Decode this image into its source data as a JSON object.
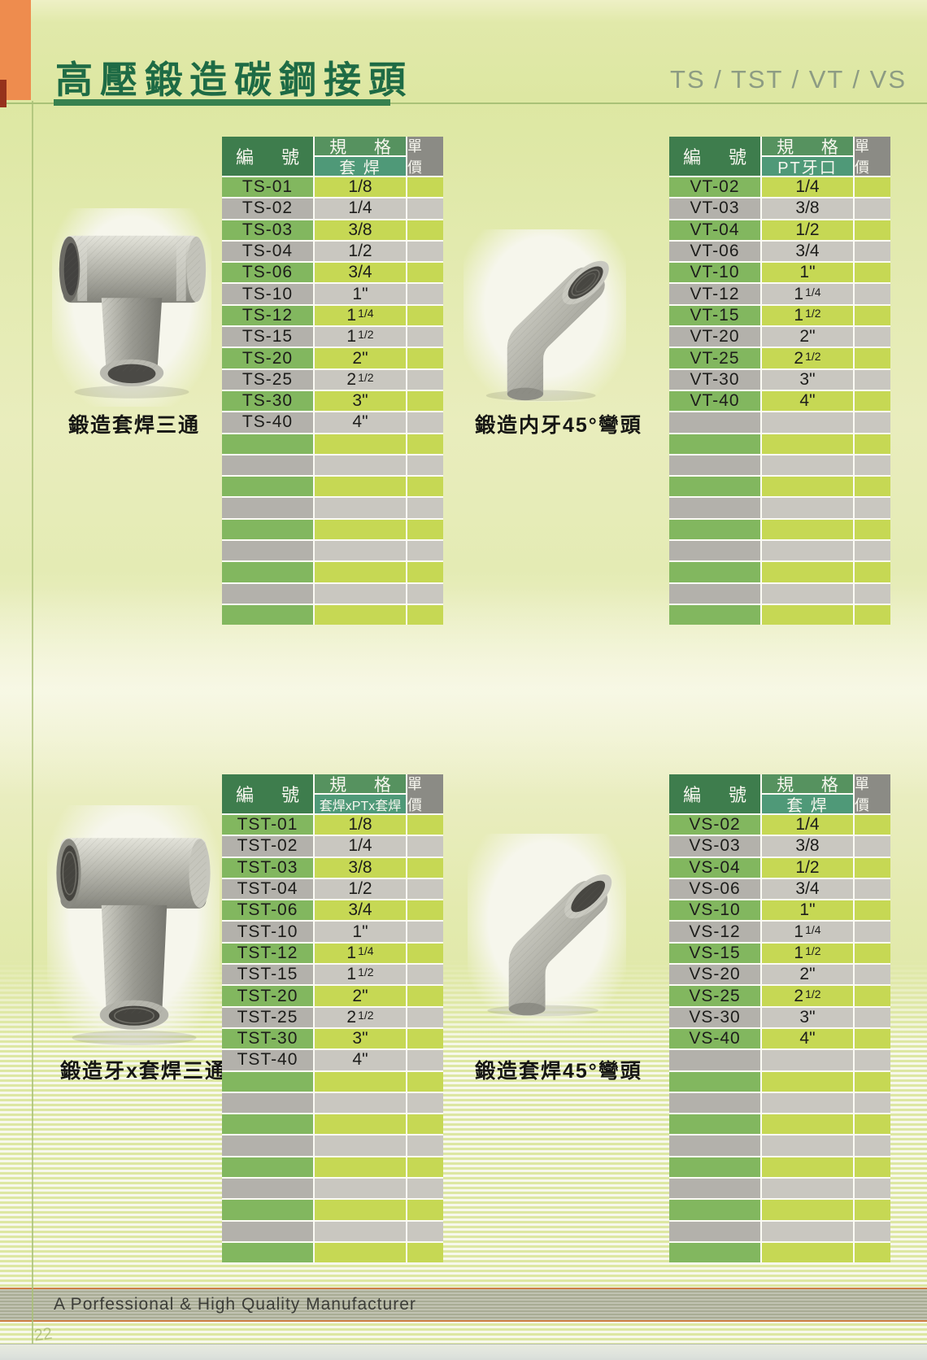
{
  "header": {
    "title": "高壓鍛造碳鋼接頭",
    "series_codes": "TS / TST / VT / VS"
  },
  "figures": [
    {
      "caption": "鍛造套焊三通",
      "image": "forged-socket-weld-tee-photo"
    },
    {
      "caption": "鍛造内牙45°彎頭",
      "image": "forged-female-thread-45-elbow-photo"
    },
    {
      "caption": "鍛造牙x套焊三通",
      "image": "forged-thread-x-socket-weld-tee-photo"
    },
    {
      "caption": "鍛造套焊45°彎頭",
      "image": "forged-socket-weld-45-elbow-photo"
    }
  ],
  "tables": [
    {
      "name": "TS",
      "headers": {
        "code": "編 號",
        "spec": "規 格",
        "spec_sub": "套 焊",
        "price": "單 價"
      },
      "rows": [
        [
          "TS-01",
          "1/8"
        ],
        [
          "TS-02",
          "1/4"
        ],
        [
          "TS-03",
          "3/8"
        ],
        [
          "TS-04",
          "1/2"
        ],
        [
          "TS-06",
          "3/4"
        ],
        [
          "TS-10",
          "1\""
        ],
        [
          "TS-12",
          "1 1/4"
        ],
        [
          "TS-15",
          "1 1/2"
        ],
        [
          "TS-20",
          "2\""
        ],
        [
          "TS-25",
          "2 1/2"
        ],
        [
          "TS-30",
          "3\""
        ],
        [
          "TS-40",
          "4\""
        ]
      ],
      "total_rows": 21
    },
    {
      "name": "VT",
      "headers": {
        "code": "編 號",
        "spec": "規 格",
        "spec_sub": "PT牙口",
        "price": "單 價"
      },
      "rows": [
        [
          "VT-02",
          "1/4"
        ],
        [
          "VT-03",
          "3/8"
        ],
        [
          "VT-04",
          "1/2"
        ],
        [
          "VT-06",
          "3/4"
        ],
        [
          "VT-10",
          "1\""
        ],
        [
          "VT-12",
          "1 1/4"
        ],
        [
          "VT-15",
          "1 1/2"
        ],
        [
          "VT-20",
          "2\""
        ],
        [
          "VT-25",
          "2 1/2"
        ],
        [
          "VT-30",
          "3\""
        ],
        [
          "VT-40",
          "4\""
        ]
      ],
      "total_rows": 21
    },
    {
      "name": "TST",
      "headers": {
        "code": "編 號",
        "spec": "規 格",
        "spec_sub": "套焊xPTx套焊",
        "price": "單 價"
      },
      "rows": [
        [
          "TST-01",
          "1/8"
        ],
        [
          "TST-02",
          "1/4"
        ],
        [
          "TST-03",
          "3/8"
        ],
        [
          "TST-04",
          "1/2"
        ],
        [
          "TST-06",
          "3/4"
        ],
        [
          "TST-10",
          "1\""
        ],
        [
          "TST-12",
          "1 1/4"
        ],
        [
          "TST-15",
          "1 1/2"
        ],
        [
          "TST-20",
          "2\""
        ],
        [
          "TST-25",
          "2 1/2"
        ],
        [
          "TST-30",
          "3\""
        ],
        [
          "TST-40",
          "4\""
        ]
      ],
      "total_rows": 21
    },
    {
      "name": "VS",
      "headers": {
        "code": "編 號",
        "spec": "規 格",
        "spec_sub": "套 焊",
        "price": "單 價"
      },
      "rows": [
        [
          "VS-02",
          "1/4"
        ],
        [
          "VS-03",
          "3/8"
        ],
        [
          "VS-04",
          "1/2"
        ],
        [
          "VS-06",
          "3/4"
        ],
        [
          "VS-10",
          "1\""
        ],
        [
          "VS-12",
          "1 1/4"
        ],
        [
          "VS-15",
          "1 1/2"
        ],
        [
          "VS-20",
          "2\""
        ],
        [
          "VS-25",
          "2 1/2"
        ],
        [
          "VS-30",
          "3\""
        ],
        [
          "VS-40",
          "4\""
        ]
      ],
      "total_rows": 21
    }
  ],
  "footer": {
    "text": "A Porfessional & High Quality Manufacturer",
    "page_number": "22"
  },
  "colors": {
    "title-green": "#1e6b45",
    "series-gray": "#8d9c83",
    "accent-orange": "#ee8c4e",
    "rule-green": "#a9c177",
    "underline-green": "#37814f",
    "head-dark": "#3e7d4d",
    "head-green": "#56925f",
    "head-teal": "#4f9978",
    "head-gray": "#8b8b85",
    "row-green": "#82b75f",
    "row-gray": "#b3b1ab",
    "cell-green": "#c6d854",
    "cell-gray": "#c9c7c0",
    "footer-line": "#cd7e45"
  }
}
